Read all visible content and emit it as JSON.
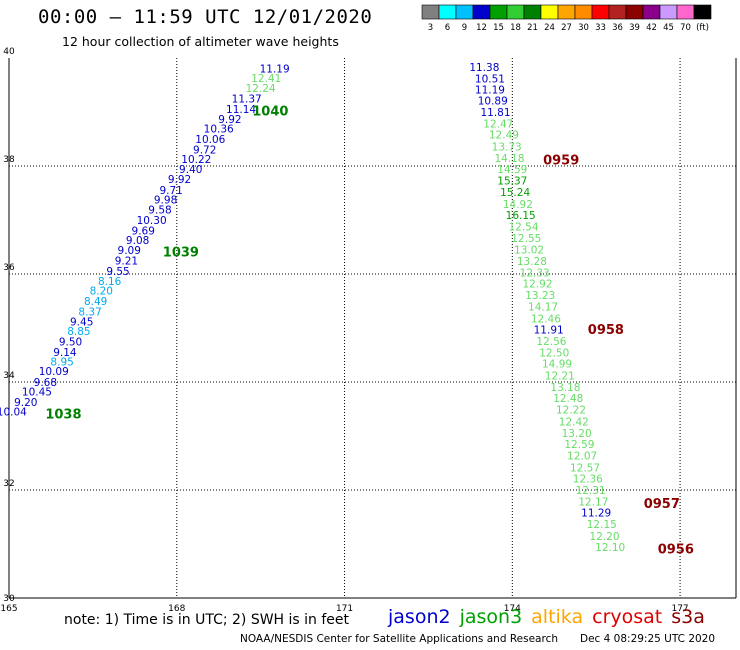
{
  "title": "00:00 — 11:59 UTC 12/01/2020",
  "subtitle": "12 hour collection of altimeter wave heights",
  "footer_note": "note: 1) Time is in UTC; 2) SWH is in feet",
  "credits": "NOAA/NESDIS Center for Satellite Applications and Research",
  "timestamp": "Dec  4 08:29:25 UTC 2020",
  "colorbar": {
    "colors": [
      "#808080",
      "#00ffff",
      "#00bfff",
      "#0000cd",
      "#00a000",
      "#32cd32",
      "#008000",
      "#ffff00",
      "#ffa500",
      "#ff8c00",
      "#ff0000",
      "#b22222",
      "#8b0000",
      "#8b008b",
      "#cc99ff",
      "#ff66cc",
      "#000000"
    ],
    "labels": [
      "3",
      "6",
      "9",
      "12",
      "15",
      "18",
      "21",
      "24",
      "27",
      "30",
      "33",
      "36",
      "39",
      "42",
      "45",
      "70",
      "(ft)"
    ]
  },
  "legend": [
    {
      "name": "jason2",
      "color": "#0000cd"
    },
    {
      "name": "jason3",
      "color": "#00a000"
    },
    {
      "name": "altika",
      "color": "#ffa500"
    },
    {
      "name": "cryosat",
      "color": "#e00000"
    },
    {
      "name": "s3a",
      "color": "#8b0000"
    }
  ],
  "chart_data": {
    "type": "scatter",
    "xlabel": "",
    "ylabel": "",
    "xlim": [
      165,
      178
    ],
    "ylim": [
      30,
      40
    ],
    "xticks": [
      "165",
      "168",
      "171",
      "174",
      "177"
    ],
    "yticks": [
      "30",
      "32",
      "34",
      "36",
      "38",
      "40"
    ],
    "grid": true,
    "color_scale": {
      "thresholds": [
        12,
        15,
        18
      ],
      "colors": [
        "#0000cd",
        "#66dd66",
        "#00a000"
      ],
      "low_colors": [
        [
          9,
          "#00aaee"
        ]
      ]
    },
    "series": [
      {
        "points": [
          {
            "x": 165.05,
            "y": 33.45,
            "v": "10.04"
          },
          {
            "x": 165.3,
            "y": 33.63,
            "v": "9.20"
          },
          {
            "x": 165.5,
            "y": 33.82,
            "v": "10.45"
          },
          {
            "x": 165.65,
            "y": 34.0,
            "v": "9.68"
          },
          {
            "x": 165.8,
            "y": 34.2,
            "v": "10.09"
          },
          {
            "x": 165.95,
            "y": 34.38,
            "v": "8.95"
          },
          {
            "x": 166.0,
            "y": 34.56,
            "v": "9.14"
          },
          {
            "x": 166.1,
            "y": 34.75,
            "v": "9.50"
          },
          {
            "x": 166.25,
            "y": 34.94,
            "v": "8.85"
          },
          {
            "x": 166.3,
            "y": 35.12,
            "v": "9.45"
          },
          {
            "x": 166.45,
            "y": 35.31,
            "v": "8.37"
          },
          {
            "x": 166.55,
            "y": 35.5,
            "v": "8.49"
          },
          {
            "x": 166.65,
            "y": 35.69,
            "v": "8.20"
          },
          {
            "x": 166.8,
            "y": 35.87,
            "v": "8.16"
          },
          {
            "x": 166.95,
            "y": 36.06,
            "v": "9.55"
          },
          {
            "x": 167.1,
            "y": 36.25,
            "v": "9.21"
          },
          {
            "x": 167.15,
            "y": 36.44,
            "v": "9.09"
          },
          {
            "x": 167.3,
            "y": 36.63,
            "v": "9.08"
          },
          {
            "x": 167.4,
            "y": 36.81,
            "v": "9.69"
          },
          {
            "x": 167.55,
            "y": 37.0,
            "v": "10.30"
          },
          {
            "x": 167.7,
            "y": 37.19,
            "v": "9.58"
          },
          {
            "x": 167.8,
            "y": 37.38,
            "v": "9.98"
          },
          {
            "x": 167.9,
            "y": 37.56,
            "v": "9.71"
          },
          {
            "x": 168.05,
            "y": 37.76,
            "v": "9.92"
          },
          {
            "x": 168.25,
            "y": 37.94,
            "v": "9.40"
          },
          {
            "x": 168.35,
            "y": 38.13,
            "v": "10.22"
          },
          {
            "x": 168.5,
            "y": 38.31,
            "v": "9.72"
          },
          {
            "x": 168.6,
            "y": 38.5,
            "v": "10.06"
          },
          {
            "x": 168.75,
            "y": 38.69,
            "v": "10.36"
          },
          {
            "x": 168.95,
            "y": 38.87,
            "v": "9.92"
          },
          {
            "x": 169.15,
            "y": 39.06,
            "v": "11.14"
          },
          {
            "x": 169.25,
            "y": 39.25,
            "v": "11.37"
          },
          {
            "x": 169.5,
            "y": 39.44,
            "v": "12.24"
          },
          {
            "x": 169.6,
            "y": 39.63,
            "v": "12.41"
          },
          {
            "x": 169.75,
            "y": 39.81,
            "v": "11.19"
          },
          {
            "x": 173.5,
            "y": 39.83,
            "v": "11.38"
          },
          {
            "x": 173.6,
            "y": 39.62,
            "v": "10.51"
          },
          {
            "x": 173.6,
            "y": 39.42,
            "v": "11.19"
          },
          {
            "x": 173.65,
            "y": 39.21,
            "v": "10.89"
          },
          {
            "x": 173.7,
            "y": 39.0,
            "v": "11.81"
          },
          {
            "x": 173.75,
            "y": 38.79,
            "v": "12.47"
          },
          {
            "x": 173.85,
            "y": 38.58,
            "v": "12.49"
          },
          {
            "x": 173.9,
            "y": 38.36,
            "v": "13.73"
          },
          {
            "x": 173.95,
            "y": 38.15,
            "v": "14.18"
          },
          {
            "x": 174.0,
            "y": 37.94,
            "v": "14.59"
          },
          {
            "x": 174.0,
            "y": 37.73,
            "v": "15.37"
          },
          {
            "x": 174.05,
            "y": 37.52,
            "v": "15.24"
          },
          {
            "x": 174.1,
            "y": 37.3,
            "v": "14.92"
          },
          {
            "x": 174.15,
            "y": 37.09,
            "v": "16.15"
          },
          {
            "x": 174.2,
            "y": 36.88,
            "v": "12.54"
          },
          {
            "x": 174.25,
            "y": 36.67,
            "v": "12.55"
          },
          {
            "x": 174.3,
            "y": 36.45,
            "v": "13.02"
          },
          {
            "x": 174.35,
            "y": 36.24,
            "v": "13.28"
          },
          {
            "x": 174.4,
            "y": 36.03,
            "v": "12.33"
          },
          {
            "x": 174.45,
            "y": 35.82,
            "v": "12.92"
          },
          {
            "x": 174.5,
            "y": 35.61,
            "v": "13.23"
          },
          {
            "x": 174.55,
            "y": 35.4,
            "v": "14.17"
          },
          {
            "x": 174.6,
            "y": 35.18,
            "v": "12.46"
          },
          {
            "x": 174.65,
            "y": 34.97,
            "v": "11.91"
          },
          {
            "x": 174.7,
            "y": 34.76,
            "v": "12.56"
          },
          {
            "x": 174.75,
            "y": 34.55,
            "v": "12.50"
          },
          {
            "x": 174.8,
            "y": 34.34,
            "v": "14.99"
          },
          {
            "x": 174.85,
            "y": 34.12,
            "v": "12.21"
          },
          {
            "x": 174.95,
            "y": 33.91,
            "v": "13.18"
          },
          {
            "x": 175.0,
            "y": 33.7,
            "v": "12.48"
          },
          {
            "x": 175.05,
            "y": 33.49,
            "v": "12.22"
          },
          {
            "x": 175.1,
            "y": 33.27,
            "v": "12.42"
          },
          {
            "x": 175.15,
            "y": 33.06,
            "v": "13.20"
          },
          {
            "x": 175.2,
            "y": 32.85,
            "v": "12.59"
          },
          {
            "x": 175.25,
            "y": 32.64,
            "v": "12.07"
          },
          {
            "x": 175.3,
            "y": 32.42,
            "v": "12.57"
          },
          {
            "x": 175.35,
            "y": 32.21,
            "v": "12.36"
          },
          {
            "x": 175.4,
            "y": 32.0,
            "v": "12.31"
          },
          {
            "x": 175.45,
            "y": 31.79,
            "v": "12.17"
          },
          {
            "x": 175.5,
            "y": 31.58,
            "v": "11.29"
          },
          {
            "x": 175.6,
            "y": 31.37,
            "v": "12.15"
          },
          {
            "x": 175.65,
            "y": 31.15,
            "v": "12.20"
          },
          {
            "x": 175.75,
            "y": 30.94,
            "v": "12.10"
          }
        ]
      }
    ],
    "annotations": [
      {
        "text": "1040",
        "x": 169.35,
        "y": 39.03,
        "color": "#008000"
      },
      {
        "text": "1039",
        "x": 167.75,
        "y": 36.42,
        "color": "#008000"
      },
      {
        "text": "1038",
        "x": 165.65,
        "y": 33.42,
        "color": "#008000"
      },
      {
        "text": "0959",
        "x": 174.55,
        "y": 38.12,
        "color": "#8b0000"
      },
      {
        "text": "0958",
        "x": 175.35,
        "y": 34.98,
        "color": "#8b0000"
      },
      {
        "text": "0957",
        "x": 176.35,
        "y": 31.76,
        "color": "#8b0000"
      },
      {
        "text": "0956",
        "x": 176.6,
        "y": 30.92,
        "color": "#8b0000"
      }
    ]
  }
}
